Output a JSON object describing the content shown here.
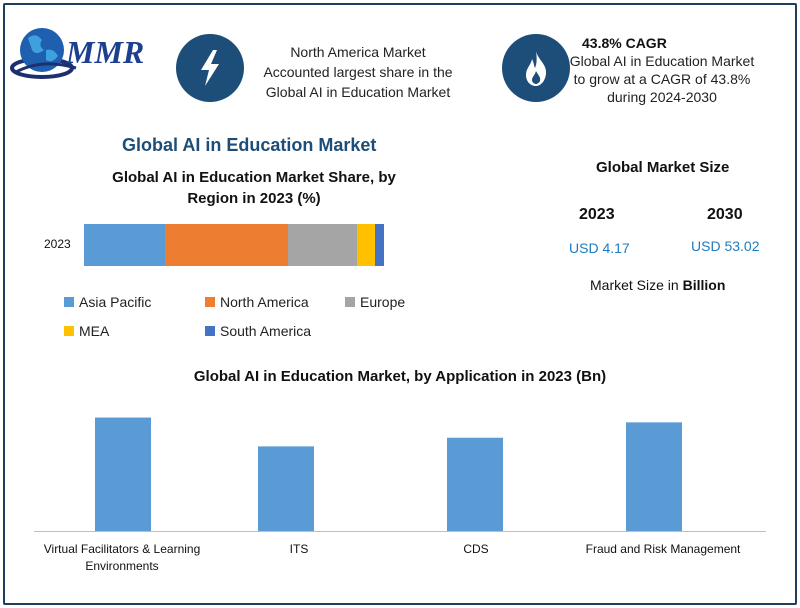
{
  "brand": {
    "logo_text": "MMR"
  },
  "header": {
    "na_text_lines": [
      "North America Market",
      "Accounted largest share in the",
      "Global AI in Education Market"
    ],
    "cagr_title": "43.8% CAGR",
    "cagr_text_lines": [
      "Global AI in Education Market",
      "to grow at a CAGR of 43.8%",
      "during 2024-2030"
    ],
    "icons": [
      "lightning-icon",
      "flame-icon"
    ]
  },
  "section_title": "Global AI in Education Market",
  "market_size": {
    "title": "Global Market Size",
    "years": [
      "2023",
      "2030"
    ],
    "values": [
      "USD 4.17",
      "USD 53.02"
    ],
    "note_prefix": "Market Size in ",
    "note_unit": "Billion"
  },
  "colors": {
    "asia_pacific": "#5b9bd5",
    "north_america": "#ed7d31",
    "europe": "#a5a5a5",
    "mea": "#ffc000",
    "south_america": "#4472c4",
    "navy": "#1d4e79"
  },
  "chart_data": [
    {
      "type": "bar",
      "orientation": "horizontal-stacked",
      "title_lines": [
        "Global AI in Education Market Share, by",
        "Region in 2023 (%)"
      ],
      "categories": [
        "2023"
      ],
      "series": [
        {
          "name": "Asia Pacific",
          "values": [
            27
          ]
        },
        {
          "name": "North America",
          "values": [
            41
          ]
        },
        {
          "name": "Europe",
          "values": [
            23
          ]
        },
        {
          "name": "MEA",
          "values": [
            6
          ]
        },
        {
          "name": "South America",
          "values": [
            3
          ]
        }
      ],
      "xlim": [
        0,
        100
      ],
      "legend": "bottom",
      "grid": false
    },
    {
      "type": "bar",
      "title": "Global AI in Education Market, by Application in 2023 (Bn)",
      "categories": [
        "Virtual Facilitators & Learning Environments",
        "ITS",
        "CDS",
        "Fraud and Risk Management"
      ],
      "category_lines": [
        [
          "Virtual Facilitators & Learning",
          "Environments"
        ],
        [
          "ITS"
        ],
        [
          "CDS"
        ],
        [
          "Fraud and Risk Management"
        ]
      ],
      "values": [
        1.18,
        0.88,
        0.97,
        1.13
      ],
      "ylim": [
        0,
        1.3
      ],
      "grid": false,
      "axis_values_shown": false
    }
  ]
}
